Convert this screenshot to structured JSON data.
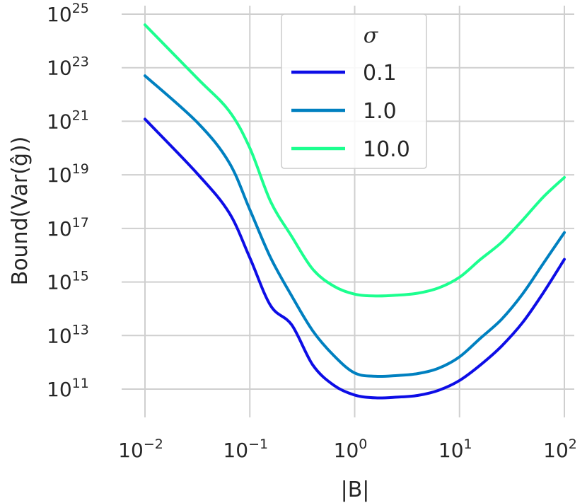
{
  "chart_data": {
    "type": "line",
    "xlabel": "|B|",
    "ylabel": "Bound(Var(ĝ))",
    "xscale": "log",
    "yscale": "log",
    "xlim": [
      0.01,
      100
    ],
    "ylim": [
      10000000000.0,
      1e+25
    ],
    "grid": true,
    "legend": {
      "title": "σ",
      "placement": "top-center"
    },
    "x_ticks": [
      {
        "base": "10",
        "exp": "−2",
        "value": 0.01
      },
      {
        "base": "10",
        "exp": "−1",
        "value": 0.1
      },
      {
        "base": "10",
        "exp": "0",
        "value": 1
      },
      {
        "base": "10",
        "exp": "1",
        "value": 10
      },
      {
        "base": "10",
        "exp": "2",
        "value": 100
      }
    ],
    "y_ticks": [
      {
        "base": "10",
        "exp": "25",
        "value": 1e+25
      },
      {
        "base": "10",
        "exp": "23",
        "value": 1e+23
      },
      {
        "base": "10",
        "exp": "21",
        "value": 1e+21
      },
      {
        "base": "10",
        "exp": "19",
        "value": 1e+19
      },
      {
        "base": "10",
        "exp": "17",
        "value": 1e+17
      },
      {
        "base": "10",
        "exp": "15",
        "value": 1000000000000000.0
      },
      {
        "base": "10",
        "exp": "13",
        "value": 10000000000000.0
      },
      {
        "base": "10",
        "exp": "11",
        "value": 100000000000.0
      }
    ],
    "x": [
      0.01,
      0.0316,
      0.0631,
      0.1,
      0.158,
      0.251,
      0.398,
      0.631,
      1.0,
      1.585,
      2.512,
      3.981,
      6.31,
      10.0,
      15.85,
      25.12,
      39.81,
      63.1,
      100.0
    ],
    "series": [
      {
        "name": "0.1",
        "color": "#0d0de6",
        "values": [
          1.2e+21,
          1.1e+19,
          4e+17,
          8000000000000000.0,
          130000000000000.0,
          25000000000000.0,
          800000000000.0,
          140000000000.0,
          60000000000.0,
          47000000000.0,
          50000000000.0,
          58000000000.0,
          90000000000.0,
          210000000000.0,
          800000000000.0,
          4000000000000.0,
          30000000000000.0,
          400000000000000.0,
          7000000000000000.0
        ]
      },
      {
        "name": "1.0",
        "color": "#0080c0",
        "values": [
          5e+22,
          9e+20,
          3e+19,
          5e+17,
          8000000000000000.0,
          300000000000000.0,
          15000000000000.0,
          1800000000000.0,
          400000000000.0,
          300000000000.0,
          320000000000.0,
          380000000000.0,
          600000000000.0,
          1600000000000.0,
          8000000000000.0,
          40000000000000.0,
          350000000000000.0,
          5000000000000000.0,
          7e+16
        ]
      },
      {
        "name": "10.0",
        "color": "#1cff8f",
        "values": [
          4e+24,
          4e+22,
          2.5e+21,
          1e+20,
          1e+18,
          5e+16,
          3000000000000000.0,
          700000000000000.0,
          350000000000000.0,
          300000000000000.0,
          320000000000000.0,
          380000000000000.0,
          600000000000000.0,
          1500000000000000.0,
          7000000000000000.0,
          3e+16,
          2e+17,
          1.5e+18,
          8e+18
        ]
      }
    ]
  }
}
